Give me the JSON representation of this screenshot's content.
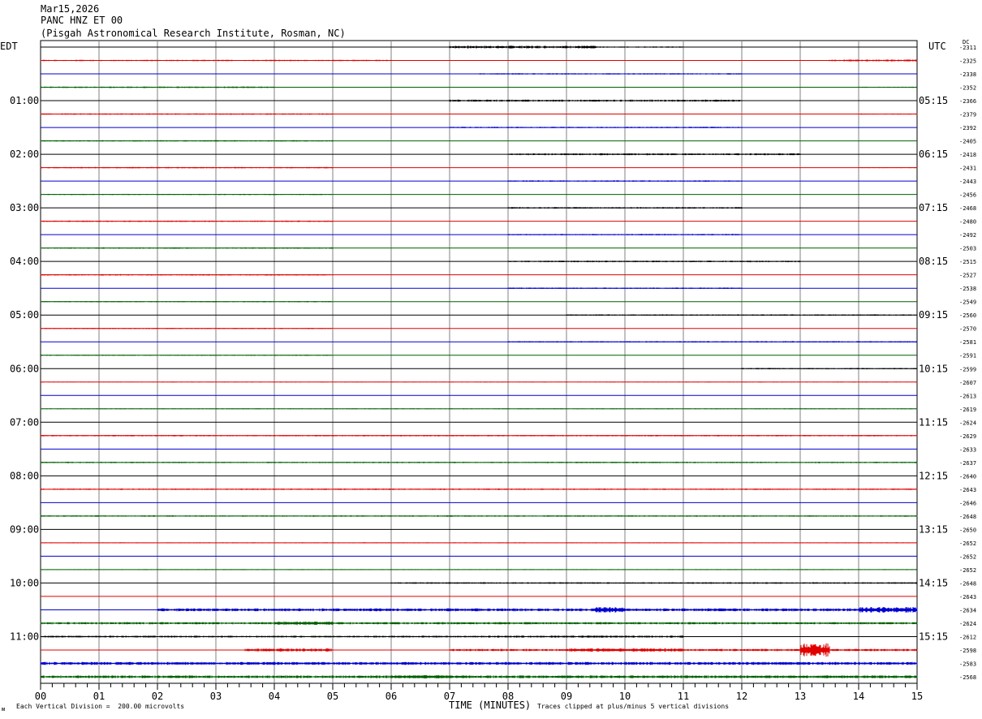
{
  "header": {
    "date": "Mar15,2026",
    "station": "PANC HNZ ET 00",
    "institution": "(Pisgah Astronomical Research Institute, Rosman, NC)"
  },
  "left_timezone": "EDT",
  "right_timezone": "UTC",
  "dc_header": "DC",
  "footer": {
    "division": "Each Vertical Division =  200.00 microvolts",
    "xlabel": "TIME (MINUTES)",
    "clip": "Traces clipped at plus/minus 5 vertical divisions",
    "corner": "ᴍ"
  },
  "colors": {
    "black": "#000000",
    "red": "#e00000",
    "blue": "#0000d0",
    "green": "#006000",
    "grid": "#808080"
  },
  "chart_data": {
    "type": "line",
    "title": "PANC HNZ ET 00",
    "xlabel": "TIME (MINUTES)",
    "ylabel": "",
    "xlim": [
      0,
      15
    ],
    "x_ticks": [
      "00",
      "01",
      "02",
      "03",
      "04",
      "05",
      "06",
      "07",
      "08",
      "09",
      "10",
      "11",
      "12",
      "13",
      "14",
      "15"
    ],
    "trace_colors": [
      "black",
      "red",
      "blue",
      "green"
    ],
    "left_hour_labels": [
      "01:00",
      "02:00",
      "03:00",
      "04:00",
      "05:00",
      "06:00",
      "07:00",
      "08:00",
      "09:00",
      "10:00",
      "11:00"
    ],
    "right_hour_labels": [
      "05:15",
      "06:15",
      "07:15",
      "08:15",
      "09:15",
      "10:15",
      "11:15",
      "12:15",
      "13:15",
      "14:15",
      "15:15"
    ],
    "dc_values": [
      "-2311",
      "-2325",
      "-2338",
      "-2352",
      "-2366",
      "-2379",
      "-2392",
      "-2405",
      "-2418",
      "-2431",
      "-2443",
      "-2456",
      "-2468",
      "-2480",
      "-2492",
      "-2503",
      "-2515",
      "-2527",
      "-2538",
      "-2549",
      "-2560",
      "-2570",
      "-2581",
      "-2591",
      "-2599",
      "-2607",
      "-2613",
      "-2619",
      "-2624",
      "-2629",
      "-2633",
      "-2637",
      "-2640",
      "-2643",
      "-2646",
      "-2648",
      "-2650",
      "-2652",
      "-2652",
      "-2652",
      "-2648",
      "-2643",
      "-2634",
      "-2624",
      "-2612",
      "-2598",
      "-2583",
      "-2568"
    ],
    "noise_segments": [
      [
        [
          7.0,
          9.5,
          1.2
        ],
        [
          9.5,
          11,
          0.6
        ]
      ],
      [
        [
          0,
          6,
          0.6
        ],
        [
          13.5,
          15,
          0.8
        ]
      ],
      [
        [
          7.5,
          12,
          0.6
        ]
      ],
      [
        [
          0,
          4,
          0.7
        ],
        [
          14,
          15,
          0.5
        ]
      ],
      [
        [
          7,
          12,
          0.9
        ]
      ],
      [
        [
          0,
          5,
          0.6
        ],
        [
          14,
          15,
          0.5
        ]
      ],
      [
        [
          7,
          12,
          0.6
        ]
      ],
      [
        [
          0,
          5,
          0.6
        ]
      ],
      [
        [
          8,
          13,
          0.8
        ]
      ],
      [
        [
          0,
          5,
          0.6
        ],
        [
          14,
          15,
          0.4
        ]
      ],
      [
        [
          8,
          12,
          0.6
        ]
      ],
      [
        [
          0,
          5,
          0.5
        ]
      ],
      [
        [
          8,
          12,
          0.7
        ]
      ],
      [
        [
          0,
          5,
          0.6
        ]
      ],
      [
        [
          8,
          12,
          0.6
        ]
      ],
      [
        [
          0,
          5,
          0.6
        ]
      ],
      [
        [
          8,
          13,
          0.7
        ]
      ],
      [
        [
          0,
          5,
          0.6
        ]
      ],
      [
        [
          8,
          12,
          0.6
        ]
      ],
      [
        [
          0,
          5,
          0.5
        ]
      ],
      [
        [
          9,
          15,
          0.6
        ]
      ],
      [
        [
          0,
          5,
          0.5
        ]
      ],
      [
        [
          8,
          15,
          0.6
        ]
      ],
      [
        [
          0,
          5,
          0.5
        ]
      ],
      [
        [
          12,
          15,
          0.6
        ]
      ],
      [
        [
          0,
          15,
          0.3
        ]
      ],
      [],
      [
        [
          0,
          15,
          0.4
        ]
      ],
      [],
      [
        [
          0,
          15,
          0.6
        ]
      ],
      [],
      [
        [
          0,
          15,
          0.6
        ]
      ],
      [],
      [
        [
          0,
          15,
          0.6
        ]
      ],
      [],
      [
        [
          0,
          15,
          0.6
        ]
      ],
      [],
      [
        [
          0,
          15,
          0.4
        ]
      ],
      [],
      [
        [
          0,
          15,
          0.4
        ]
      ],
      [
        [
          6,
          15,
          0.7
        ]
      ],
      [],
      [
        [
          2,
          15,
          1.3
        ],
        [
          9.5,
          10,
          2.5
        ],
        [
          14,
          15,
          2.5
        ]
      ],
      [
        [
          0,
          15,
          1.0
        ],
        [
          4,
          5,
          1.6
        ]
      ],
      [
        [
          0,
          8,
          0.8
        ],
        [
          8,
          11,
          0.9
        ]
      ],
      [
        [
          3.5,
          5,
          1.4
        ],
        [
          7,
          15,
          1.0
        ],
        [
          9,
          11,
          1.5
        ],
        [
          13,
          13.5,
          6.0
        ]
      ],
      [
        [
          0,
          15,
          1.3
        ]
      ],
      [
        [
          0,
          15,
          1.2
        ],
        [
          6,
          7,
          1.5
        ]
      ]
    ]
  }
}
